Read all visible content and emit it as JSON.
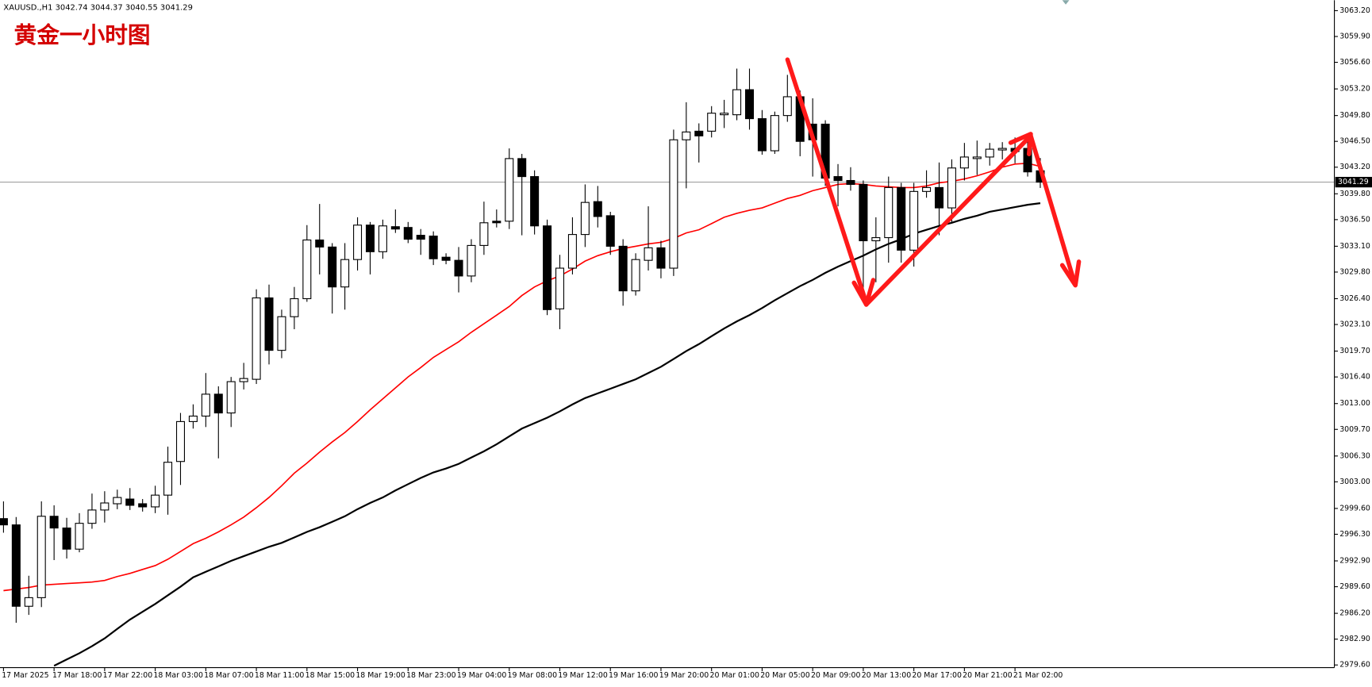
{
  "chart_data": {
    "type": "candlestick",
    "header": "XAUUSD.,H1  3042.74 3044.37 3040.55 3041.29",
    "title": "黄金一小时图",
    "categories": [
      "17 Mar 2025",
      null,
      null,
      null,
      "17 Mar 18:00",
      null,
      null,
      null,
      "17 Mar 22:00",
      null,
      null,
      null,
      "18 Mar 03:00",
      null,
      null,
      null,
      "18 Mar 07:00",
      null,
      null,
      null,
      "18 Mar 11:00",
      null,
      null,
      null,
      "18 Mar 15:00",
      null,
      null,
      null,
      "18 Mar 19:00",
      null,
      null,
      null,
      "18 Mar 23:00",
      null,
      null,
      null,
      "19 Mar 04:00",
      null,
      null,
      null,
      "19 Mar 08:00",
      null,
      null,
      null,
      "19 Mar 12:00",
      null,
      null,
      null,
      "19 Mar 16:00",
      null,
      null,
      null,
      "19 Mar 20:00",
      null,
      null,
      null,
      "20 Mar 01:00",
      null,
      null,
      null,
      "20 Mar 05:00",
      null,
      null,
      null,
      "20 Mar 09:00",
      null,
      null,
      null,
      "20 Mar 13:00",
      null,
      null,
      null,
      "20 Mar 17:00",
      null,
      null,
      null,
      "20 Mar 21:00",
      null,
      null,
      null,
      "21 Mar 02:00",
      null,
      null
    ],
    "open": [
      2998.3,
      2997.5,
      2987.1,
      2988.2,
      2998.6,
      2997.1,
      2994.4,
      2997.7,
      2999.4,
      3000.2,
      3000.8,
      3000.2,
      2999.8,
      3001.3,
      3005.6,
      3010.7,
      3011.4,
      3014.2,
      3011.8,
      3015.8,
      3016.1,
      3026.5,
      3019.8,
      3024.1,
      3026.4,
      3033.9,
      3033.0,
      3027.9,
      3031.4,
      3035.8,
      3032.4,
      3035.6,
      3035.5,
      3034.5,
      3034.4,
      3031.7,
      3031.3,
      3029.3,
      3033.2,
      3036.3,
      3036.3,
      3044.3,
      3042.0,
      3035.7,
      3025.1,
      3030.3,
      3034.6,
      3038.8,
      3037.0,
      3033.1,
      3027.4,
      3031.3,
      3032.9,
      3030.3,
      3046.7,
      3047.8,
      3047.8,
      3049.9,
      3049.9,
      3053.1,
      3049.4,
      3045.3,
      3049.8,
      3052.2,
      3048.7,
      3048.7,
      3042.0,
      3041.5,
      3041.0,
      3033.8,
      3034.2,
      3040.6,
      3032.6,
      3040.1,
      3040.6,
      3038.0,
      3043.1,
      3044.3,
      3044.5,
      3045.4,
      3045.6,
      3045.6,
      3042.74
    ],
    "high": [
      3000.5,
      2998.5,
      2991.0,
      3000.5,
      3000.0,
      2998.4,
      2999.0,
      3001.5,
      3001.8,
      3002.0,
      3002.2,
      3000.8,
      3002.5,
      3007.5,
      3011.8,
      3012.9,
      3016.9,
      3015.2,
      3016.4,
      3018.2,
      3027.6,
      3028.2,
      3025.0,
      3027.9,
      3035.8,
      3038.5,
      3033.5,
      3033.5,
      3036.8,
      3036.2,
      3036.5,
      3037.8,
      3036.2,
      3035.3,
      3035.0,
      3032.2,
      3033.0,
      3034.0,
      3038.8,
      3037.8,
      3045.6,
      3044.9,
      3042.8,
      3036.5,
      3032.0,
      3036.8,
      3041.0,
      3040.8,
      3037.5,
      3034.0,
      3032.2,
      3038.2,
      3033.8,
      3048.0,
      3051.5,
      3048.8,
      3051.0,
      3051.8,
      3055.8,
      3055.8,
      3050.5,
      3050.3,
      3055.0,
      3053.0,
      3052.0,
      3049.2,
      3043.6,
      3043.2,
      3041.5,
      3036.8,
      3042.0,
      3041.2,
      3041.2,
      3042.8,
      3043.8,
      3044.2,
      3046.3,
      3046.6,
      3046.3,
      3046.4,
      3047.0,
      3046.5,
      3044.37
    ],
    "low": [
      2996.5,
      2985.0,
      2986.0,
      2987.0,
      2993.0,
      2993.2,
      2994.0,
      2997.0,
      2997.8,
      2999.5,
      2999.4,
      2999.2,
      2999.0,
      2998.8,
      3002.6,
      3009.8,
      3010.0,
      3006.0,
      3010.0,
      3014.8,
      3015.5,
      3018.0,
      3018.8,
      3022.5,
      3026.0,
      3029.5,
      3024.5,
      3025.0,
      3030.0,
      3029.5,
      3031.5,
      3034.8,
      3033.5,
      3032.0,
      3030.7,
      3030.8,
      3027.2,
      3028.5,
      3032.0,
      3035.5,
      3035.3,
      3034.5,
      3034.6,
      3024.3,
      3022.5,
      3029.5,
      3033.0,
      3035.5,
      3032.0,
      3025.5,
      3026.8,
      3030.0,
      3029.0,
      3029.3,
      3040.5,
      3043.8,
      3047.0,
      3048.2,
      3049.2,
      3048.0,
      3044.8,
      3044.9,
      3049.0,
      3044.6,
      3042.0,
      3040.8,
      3038.2,
      3040.2,
      3027.5,
      3028.5,
      3031.0,
      3031.0,
      3030.5,
      3039.3,
      3034.5,
      3036.0,
      3041.5,
      3042.2,
      3043.4,
      3044.2,
      3043.7,
      3042.0,
      3040.55
    ],
    "close": [
      2997.5,
      2987.1,
      2988.2,
      2998.6,
      2997.1,
      2994.4,
      2997.7,
      2999.4,
      3000.3,
      3001.0,
      3000.0,
      2999.8,
      3001.3,
      3005.5,
      3010.7,
      3011.4,
      3014.2,
      3011.8,
      3015.8,
      3016.2,
      3026.5,
      3019.8,
      3024.1,
      3026.4,
      3033.9,
      3033.0,
      3027.9,
      3031.4,
      3035.8,
      3032.4,
      3035.7,
      3035.3,
      3034.0,
      3034.0,
      3031.5,
      3031.3,
      3029.3,
      3033.2,
      3036.1,
      3036.1,
      3044.3,
      3042.0,
      3035.7,
      3025.0,
      3030.3,
      3034.6,
      3038.7,
      3036.9,
      3033.1,
      3027.4,
      3031.4,
      3032.9,
      3030.3,
      3046.7,
      3047.7,
      3047.2,
      3050.1,
      3050.1,
      3053.1,
      3049.4,
      3045.3,
      3049.8,
      3052.2,
      3046.5,
      3046.7,
      3041.8,
      3041.5,
      3041.0,
      3033.8,
      3034.2,
      3040.6,
      3032.6,
      3040.1,
      3040.6,
      3038.0,
      3043.1,
      3044.5,
      3044.5,
      3045.5,
      3045.6,
      3045.2,
      3042.6,
      3041.29
    ],
    "overlays": [
      {
        "color": "#ff0000",
        "values": [
          2989.1,
          2989.3,
          2989.5,
          2989.8,
          2989.9,
          2990.0,
          2990.1,
          2990.2,
          2990.4,
          2990.9,
          2991.3,
          2991.8,
          2992.3,
          2993.1,
          2994.1,
          2995.1,
          2995.8,
          2996.6,
          2997.5,
          2998.5,
          2999.7,
          3001.0,
          3002.5,
          3004.1,
          3005.4,
          3006.8,
          3008.1,
          3009.3,
          3010.7,
          3012.2,
          3013.6,
          3015.0,
          3016.4,
          3017.6,
          3018.9,
          3019.9,
          3020.9,
          3022.1,
          3023.2,
          3024.3,
          3025.4,
          3026.8,
          3027.9,
          3028.7,
          3029.3,
          3030.2,
          3031.2,
          3031.9,
          3032.4,
          3032.8,
          3033.1,
          3033.4,
          3033.6,
          3034.1,
          3034.8,
          3035.2,
          3036.0,
          3036.8,
          3037.3,
          3037.7,
          3038.0,
          3038.6,
          3039.2,
          3039.6,
          3040.2,
          3040.6,
          3041.0,
          3041.1,
          3041.0,
          3040.8,
          3040.7,
          3040.6,
          3040.6,
          3040.8,
          3041.2,
          3041.4,
          3041.7,
          3042.1,
          3042.6,
          3043.2,
          3043.6,
          3043.7,
          3043.3
        ]
      },
      {
        "color": "#000000",
        "values": [
          null,
          null,
          null,
          null,
          2979.5,
          2980.3,
          2981.1,
          2982.0,
          2983.0,
          2984.2,
          2985.4,
          2986.4,
          2987.4,
          2988.5,
          2989.6,
          2990.8,
          2991.5,
          2992.2,
          2992.9,
          2993.5,
          2994.1,
          2994.7,
          2995.2,
          2995.9,
          2996.6,
          2997.2,
          2997.9,
          2998.6,
          2999.5,
          3000.3,
          3001.0,
          3001.9,
          3002.7,
          3003.5,
          3004.2,
          3004.7,
          3005.3,
          3006.1,
          3006.9,
          3007.8,
          3008.8,
          3009.8,
          3010.5,
          3011.2,
          3012.0,
          3012.9,
          3013.7,
          3014.3,
          3014.9,
          3015.5,
          3016.1,
          3016.9,
          3017.7,
          3018.7,
          3019.7,
          3020.6,
          3021.6,
          3022.6,
          3023.5,
          3024.3,
          3025.2,
          3026.2,
          3027.1,
          3028.0,
          3028.8,
          3029.7,
          3030.5,
          3031.2,
          3031.9,
          3032.7,
          3033.4,
          3034.0,
          3034.7,
          3035.2,
          3035.7,
          3036.1,
          3036.6,
          3037.0,
          3037.5,
          3037.8,
          3038.1,
          3038.4,
          3038.6
        ]
      }
    ],
    "last_price": 3041.29,
    "ylim": [
      2979.6,
      3063.2
    ],
    "yticks": [
      {
        "value": 3063.2,
        "label": "3063.20"
      },
      {
        "value": 3059.9,
        "label": "3059.90"
      },
      {
        "value": 3056.6,
        "label": "3056.60"
      },
      {
        "value": 3053.2,
        "label": "3053.20"
      },
      {
        "value": 3049.8,
        "label": "3049.80"
      },
      {
        "value": 3046.5,
        "label": "3046.50"
      },
      {
        "value": 3043.2,
        "label": "3043.20"
      },
      {
        "value": 3039.8,
        "label": "3039.80"
      },
      {
        "value": 3036.5,
        "label": "3036.50"
      },
      {
        "value": 3033.1,
        "label": "3033.10"
      },
      {
        "value": 3029.8,
        "label": "3029.80"
      },
      {
        "value": 3026.4,
        "label": "3026.40"
      },
      {
        "value": 3023.1,
        "label": "3023.10"
      },
      {
        "value": 3019.7,
        "label": "3019.70"
      },
      {
        "value": 3016.4,
        "label": "3016.40"
      },
      {
        "value": 3013,
        "label": "3013.00"
      },
      {
        "value": 3009.7,
        "label": "3009.70"
      },
      {
        "value": 3006.3,
        "label": "3006.30"
      },
      {
        "value": 3003,
        "label": "3003.00"
      },
      {
        "value": 2999.6,
        "label": "2999.60"
      },
      {
        "value": 2996.3,
        "label": "2996.30"
      },
      {
        "value": 2992.9,
        "label": "2992.90"
      },
      {
        "value": 2989.6,
        "label": "2989.60"
      },
      {
        "value": 2986.2,
        "label": "2986.20"
      },
      {
        "value": 2982.9,
        "label": "2982.90"
      },
      {
        "value": 2979.6,
        "label": "2979.60"
      }
    ],
    "grid": false
  }
}
